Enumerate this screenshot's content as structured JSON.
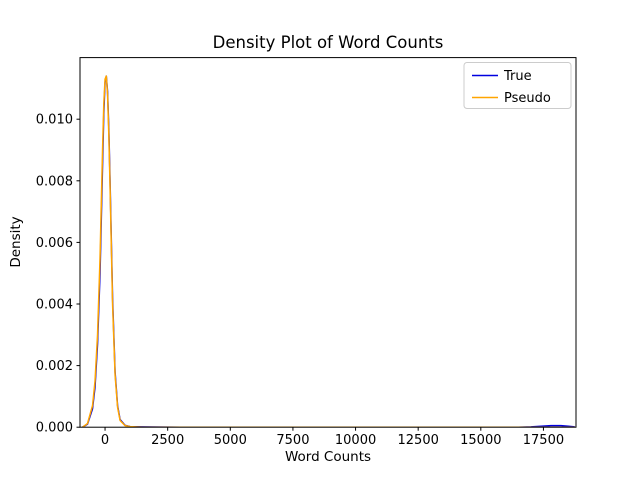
{
  "figure": {
    "background": "#ffffff",
    "spine_color": "#000000",
    "legend_edge_color": "#cccccc"
  },
  "chart_data": {
    "type": "line",
    "title": "Density Plot of Word Counts",
    "xlabel": "Word Counts",
    "ylabel": "Density",
    "xlim": [
      -1000,
      18800
    ],
    "ylim": [
      0,
      0.012
    ],
    "xticks": [
      0,
      2500,
      5000,
      7500,
      10000,
      12500,
      15000,
      17500
    ],
    "xtick_labels": [
      "0",
      "2500",
      "5000",
      "7500",
      "10000",
      "12500",
      "15000",
      "17500"
    ],
    "yticks": [
      0.0,
      0.002,
      0.004,
      0.006,
      0.008,
      0.01
    ],
    "ytick_labels": [
      "0.000",
      "0.002",
      "0.004",
      "0.006",
      "0.008",
      "0.010"
    ],
    "grid": false,
    "legend": {
      "position": "upper right",
      "entries": [
        "True",
        "Pseudo"
      ]
    },
    "series": [
      {
        "name": "True",
        "color": "#0000e0",
        "points": [
          [
            -900,
            0
          ],
          [
            -700,
            0.0001
          ],
          [
            -500,
            0.0006
          ],
          [
            -400,
            0.0013
          ],
          [
            -300,
            0.0027
          ],
          [
            -200,
            0.005
          ],
          [
            -100,
            0.0085
          ],
          [
            -50,
            0.0102
          ],
          [
            0,
            0.0112
          ],
          [
            50,
            0.0114
          ],
          [
            100,
            0.0109
          ],
          [
            150,
            0.0097
          ],
          [
            200,
            0.008
          ],
          [
            300,
            0.0042
          ],
          [
            400,
            0.0018
          ],
          [
            500,
            0.0007
          ],
          [
            600,
            0.00025
          ],
          [
            800,
            6e-05
          ],
          [
            1000,
            2e-05
          ],
          [
            1500,
            1e-05
          ],
          [
            3000,
            0
          ],
          [
            6000,
            0
          ],
          [
            10000,
            0
          ],
          [
            14000,
            0
          ],
          [
            16500,
            0
          ],
          [
            17000,
            1e-05
          ],
          [
            17400,
            3e-05
          ],
          [
            17800,
            5e-05
          ],
          [
            18200,
            5e-05
          ],
          [
            18500,
            3e-05
          ],
          [
            18750,
            1e-05
          ]
        ]
      },
      {
        "name": "Pseudo",
        "color": "#ffa500",
        "points": [
          [
            -900,
            0
          ],
          [
            -700,
            0.00012
          ],
          [
            -500,
            0.0007
          ],
          [
            -400,
            0.0015
          ],
          [
            -300,
            0.003
          ],
          [
            -200,
            0.0055
          ],
          [
            -100,
            0.009
          ],
          [
            -50,
            0.0105
          ],
          [
            0,
            0.0113
          ],
          [
            50,
            0.0114
          ],
          [
            100,
            0.0108
          ],
          [
            150,
            0.0095
          ],
          [
            200,
            0.0078
          ],
          [
            300,
            0.004
          ],
          [
            400,
            0.0017
          ],
          [
            500,
            0.00065
          ],
          [
            600,
            0.00022
          ],
          [
            800,
            5e-05
          ],
          [
            1000,
            2e-05
          ],
          [
            1500,
            0
          ],
          [
            5000,
            0
          ],
          [
            10000,
            0
          ],
          [
            15000,
            0
          ],
          [
            18750,
            0
          ]
        ]
      }
    ]
  }
}
